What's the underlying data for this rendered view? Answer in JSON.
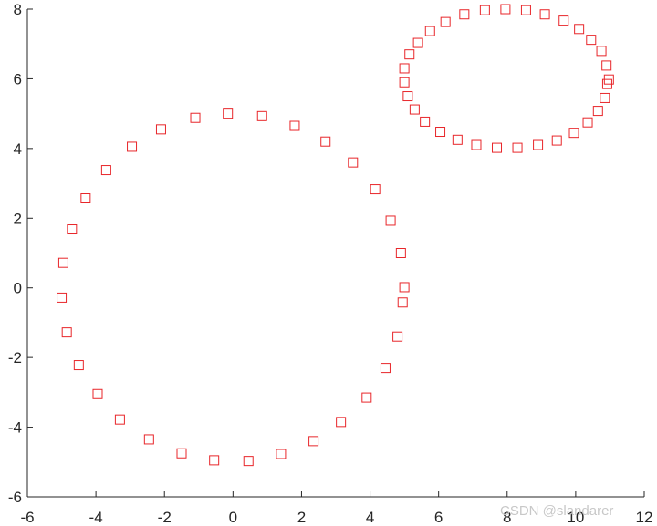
{
  "chart_data": {
    "type": "scatter",
    "xlim": [
      -6,
      12
    ],
    "ylim": [
      -6,
      8
    ],
    "x_ticks": [
      -6,
      -4,
      -2,
      0,
      2,
      4,
      6,
      8,
      10,
      12
    ],
    "y_ticks": [
      -6,
      -4,
      -2,
      0,
      2,
      4,
      6,
      8
    ],
    "grid": false,
    "marker": "square",
    "marker_color": "#e8262a",
    "series": [
      {
        "points": [
          [
            -0.15,
            5.0
          ],
          [
            0.85,
            4.93
          ],
          [
            1.8,
            4.65
          ],
          [
            2.7,
            4.2
          ],
          [
            3.5,
            3.6
          ],
          [
            4.15,
            2.83
          ],
          [
            4.6,
            1.93
          ],
          [
            4.9,
            1.0
          ],
          [
            5.0,
            0.02
          ],
          [
            4.95,
            -0.42
          ],
          [
            4.8,
            -1.4
          ],
          [
            4.45,
            -2.3
          ],
          [
            3.9,
            -3.15
          ],
          [
            3.15,
            -3.85
          ],
          [
            2.35,
            -4.4
          ],
          [
            1.4,
            -4.77
          ],
          [
            0.45,
            -4.97
          ],
          [
            -0.55,
            -4.95
          ],
          [
            -1.5,
            -4.75
          ],
          [
            -2.45,
            -4.35
          ],
          [
            -3.3,
            -3.78
          ],
          [
            -3.95,
            -3.05
          ],
          [
            -4.5,
            -2.22
          ],
          [
            -4.85,
            -1.28
          ],
          [
            -5.0,
            -0.28
          ],
          [
            -4.95,
            0.72
          ],
          [
            -4.7,
            1.68
          ],
          [
            -4.3,
            2.57
          ],
          [
            -3.7,
            3.38
          ],
          [
            -2.95,
            4.05
          ],
          [
            -2.1,
            4.55
          ],
          [
            -1.1,
            4.88
          ]
        ]
      },
      {
        "points": [
          [
            7.95,
            8.0
          ],
          [
            8.55,
            7.97
          ],
          [
            9.1,
            7.85
          ],
          [
            9.65,
            7.67
          ],
          [
            10.1,
            7.43
          ],
          [
            10.45,
            7.12
          ],
          [
            10.75,
            6.8
          ],
          [
            10.9,
            6.38
          ],
          [
            10.97,
            5.98
          ],
          [
            10.92,
            5.85
          ],
          [
            10.85,
            5.45
          ],
          [
            10.65,
            5.08
          ],
          [
            10.35,
            4.75
          ],
          [
            9.95,
            4.45
          ],
          [
            9.45,
            4.23
          ],
          [
            8.9,
            4.1
          ],
          [
            8.3,
            4.02
          ],
          [
            7.7,
            4.02
          ],
          [
            7.1,
            4.1
          ],
          [
            6.55,
            4.25
          ],
          [
            6.05,
            4.48
          ],
          [
            5.6,
            4.77
          ],
          [
            5.3,
            5.12
          ],
          [
            5.1,
            5.5
          ],
          [
            5.0,
            5.9
          ],
          [
            5.0,
            6.3
          ],
          [
            5.15,
            6.7
          ],
          [
            5.4,
            7.03
          ],
          [
            5.75,
            7.37
          ],
          [
            6.2,
            7.63
          ],
          [
            6.75,
            7.85
          ],
          [
            7.35,
            7.97
          ]
        ]
      }
    ]
  },
  "watermark": "CSDN @slandarer"
}
